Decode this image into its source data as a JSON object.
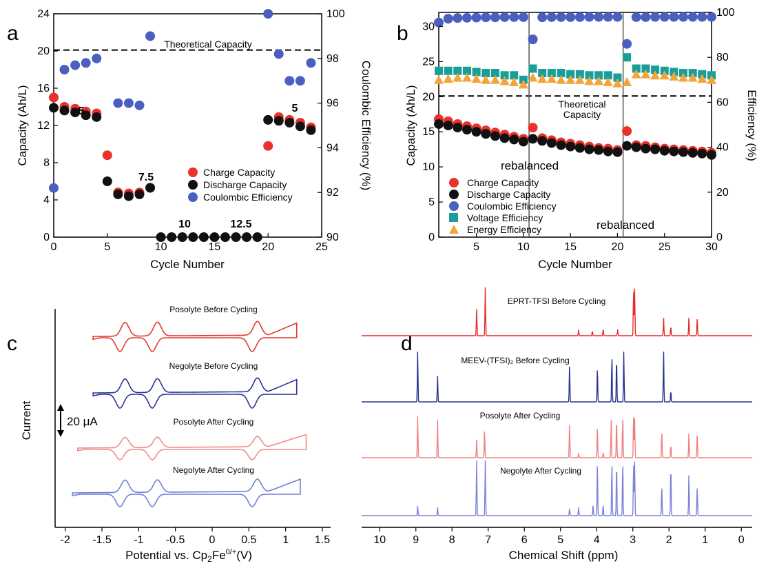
{
  "chart_data": [
    {
      "panel": "a",
      "type": "scatter",
      "xlabel": "Cycle Number",
      "ylabel": "Capacity (Ah/L)",
      "y2label": "Coulombic Efficiency (%)",
      "xlim": [
        0,
        25
      ],
      "ylim": [
        0,
        24
      ],
      "y2lim": [
        90,
        100
      ],
      "xticks": [
        "0",
        "5",
        "10",
        "15",
        "20",
        "25"
      ],
      "yticks": [
        "0",
        "4",
        "8",
        "12",
        "16",
        "20",
        "24"
      ],
      "y2ticks": [
        "90",
        "92",
        "94",
        "96",
        "98",
        "100"
      ],
      "reference_line": {
        "label": "Theoretical Capacity",
        "y": 20.1
      },
      "annotations": [
        "5",
        "7.5",
        "10",
        "12.5",
        "5"
      ],
      "series": [
        {
          "name": "Charge Capacity",
          "color": "#e8322b",
          "axis": "left",
          "x": [
            0,
            1,
            2,
            3,
            4,
            5,
            6,
            7,
            8,
            9,
            21,
            22,
            23,
            24
          ],
          "y": [
            15.0,
            14.0,
            13.8,
            13.5,
            13.3,
            8.8,
            4.8,
            4.7,
            4.8,
            5.3,
            12.9,
            12.6,
            12.3,
            11.8
          ]
        },
        {
          "name": "Discharge Capacity",
          "color": "#111111",
          "axis": "left",
          "x": [
            0,
            1,
            2,
            3,
            4,
            5,
            6,
            7,
            8,
            9,
            10,
            11,
            12,
            13,
            14,
            15,
            16,
            17,
            18,
            19,
            20,
            21,
            22,
            23,
            24
          ],
          "y": [
            13.9,
            13.6,
            13.4,
            13.1,
            12.9,
            6.0,
            4.6,
            4.4,
            4.6,
            5.3,
            0,
            0,
            0,
            0,
            0,
            0,
            0,
            0,
            0,
            0,
            12.6,
            12.5,
            12.3,
            11.9,
            11.5
          ]
        },
        {
          "name": "Charge Capacity",
          "color": "#e8322b",
          "axis": "left",
          "x": [
            20
          ],
          "y": [
            9.8
          ]
        },
        {
          "name": "Coulombic Efficiency",
          "color": "#4a5fbf",
          "axis": "right",
          "x": [
            0,
            1,
            2,
            3,
            4,
            6,
            7,
            8,
            9,
            20,
            21,
            22,
            23,
            24
          ],
          "y": [
            92.2,
            97.5,
            97.7,
            97.8,
            98.0,
            96.0,
            96.0,
            95.9,
            99.0,
            100.0,
            98.2,
            97.0,
            97.0,
            97.8
          ]
        }
      ],
      "legend": [
        "Charge Capacity",
        "Discharge Capacity",
        "Coulombic Efficiency"
      ]
    },
    {
      "panel": "b",
      "type": "scatter",
      "xlabel": "Cycle Number",
      "ylabel": "Capacity (Ah/L)",
      "y2label": "Efficiency (%)",
      "xlim": [
        1,
        30
      ],
      "ylim": [
        0,
        32
      ],
      "y2lim": [
        0,
        100
      ],
      "xticks": [
        "5",
        "10",
        "15",
        "20",
        "25",
        "30"
      ],
      "yticks": [
        "0",
        "5",
        "10",
        "15",
        "20",
        "25",
        "30"
      ],
      "y2ticks": [
        "0",
        "20",
        "40",
        "60",
        "80",
        "100"
      ],
      "reference_line": {
        "label": "Theoretical Capacity",
        "y": 20.1
      },
      "rebalance_cycles": [
        10.6,
        20.6
      ],
      "annotations": [
        "rebalanced",
        "rebalanced"
      ],
      "legend": [
        "Charge Capacity",
        "Discharge Capacity",
        "Coulombic Efficiency",
        "Voltage Efficiency",
        "Energy Efficiency"
      ],
      "series": [
        {
          "name": "Charge Capacity",
          "color": "#e8322b",
          "axis": "left",
          "x": [
            1,
            2,
            3,
            4,
            5,
            6,
            7,
            8,
            9,
            10,
            11,
            12,
            13,
            14,
            15,
            16,
            17,
            18,
            19,
            20,
            21,
            22,
            23,
            24,
            25,
            26,
            27,
            28,
            29,
            30
          ],
          "y": [
            16.8,
            16.5,
            16.1,
            15.8,
            15.5,
            15.2,
            14.9,
            14.6,
            14.3,
            14.0,
            15.6,
            14.1,
            13.8,
            13.5,
            13.3,
            13.1,
            12.9,
            12.7,
            12.6,
            12.4,
            15.1,
            13.1,
            13.0,
            12.8,
            12.6,
            12.5,
            12.4,
            12.3,
            12.2,
            12.0
          ]
        },
        {
          "name": "Discharge Capacity",
          "color": "#111111",
          "axis": "left",
          "x": [
            1,
            2,
            3,
            4,
            5,
            6,
            7,
            8,
            9,
            10,
            11,
            12,
            13,
            14,
            15,
            16,
            17,
            18,
            19,
            20,
            21,
            22,
            23,
            24,
            25,
            26,
            27,
            28,
            29,
            30
          ],
          "y": [
            16.1,
            15.9,
            15.6,
            15.3,
            15.0,
            14.7,
            14.4,
            14.1,
            13.9,
            13.6,
            14.0,
            13.7,
            13.4,
            13.1,
            12.9,
            12.7,
            12.5,
            12.4,
            12.2,
            12.1,
            13.0,
            12.8,
            12.6,
            12.5,
            12.3,
            12.2,
            12.1,
            12.0,
            11.9,
            11.7
          ]
        },
        {
          "name": "Coulombic Efficiency",
          "color": "#4a5fbf",
          "axis": "right",
          "x": [
            1,
            2,
            3,
            4,
            5,
            6,
            7,
            8,
            9,
            10,
            11,
            12,
            13,
            14,
            15,
            16,
            17,
            18,
            19,
            20,
            21,
            22,
            23,
            24,
            25,
            26,
            27,
            28,
            29,
            30
          ],
          "y": [
            95.5,
            97.2,
            97.5,
            97.6,
            97.7,
            97.8,
            97.8,
            97.9,
            97.9,
            97.9,
            88.0,
            97.8,
            97.9,
            97.9,
            97.9,
            97.9,
            98.0,
            98.0,
            98.0,
            98.0,
            86.0,
            97.9,
            97.9,
            98.0,
            98.0,
            98.0,
            98.0,
            98.0,
            98.0,
            98.0
          ]
        },
        {
          "name": "Voltage Efficiency",
          "color": "#1a9e9a",
          "axis": "right",
          "x": [
            1,
            2,
            3,
            4,
            5,
            6,
            7,
            8,
            9,
            10,
            11,
            12,
            13,
            14,
            15,
            16,
            17,
            18,
            19,
            20,
            21,
            22,
            23,
            24,
            25,
            26,
            27,
            28,
            29,
            30
          ],
          "y": [
            74,
            74,
            74,
            74,
            73.5,
            73,
            73,
            72,
            72,
            70,
            75,
            73,
            73,
            73,
            72.5,
            72.5,
            72,
            72,
            72,
            71,
            80,
            75,
            75,
            74.5,
            74,
            73.5,
            73,
            73,
            72.5,
            72
          ]
        },
        {
          "name": "Energy Efficiency",
          "color": "#f3a53a",
          "axis": "right",
          "x": [
            1,
            2,
            3,
            4,
            5,
            6,
            7,
            8,
            9,
            10,
            11,
            12,
            13,
            14,
            15,
            16,
            17,
            18,
            19,
            20,
            21,
            22,
            23,
            24,
            25,
            26,
            27,
            28,
            29,
            30
          ],
          "y": [
            70,
            70.5,
            71,
            71,
            70.5,
            70,
            70,
            69.5,
            69,
            68,
            71,
            70.5,
            70.5,
            70,
            70,
            70,
            69.5,
            69.5,
            69,
            68.5,
            69,
            72.5,
            72.5,
            72,
            72,
            71.5,
            71,
            71,
            70.5,
            70
          ]
        }
      ]
    },
    {
      "panel": "c",
      "type": "line",
      "xlabel": "Potential vs. Cp₂Fe⁰/⁺(V)",
      "ylabel": "Current",
      "xlim": [
        -2.1,
        1.5
      ],
      "xticks": [
        "-2",
        "-1.5",
        "-1",
        "-0.5",
        "0",
        "0.5",
        "1",
        "1.5"
      ],
      "scale_bar": "20 μA",
      "series": [
        {
          "name": "Posolyte Before Cycling",
          "color": "#e23a2a"
        },
        {
          "name": "Negolyte Before Cycling",
          "color": "#2a3394"
        },
        {
          "name": "Posolyte After Cycling",
          "color": "#f08a88"
        },
        {
          "name": "Negolyte After Cycling",
          "color": "#6f7fd6"
        }
      ]
    },
    {
      "panel": "d",
      "type": "line",
      "xlabel": "Chemical Shift (ppm)",
      "xlim": [
        10.5,
        -0.3
      ],
      "xticks": [
        "10",
        "9",
        "8",
        "7",
        "6",
        "5",
        "4",
        "3",
        "2",
        "1",
        "0"
      ],
      "series": [
        {
          "name": "EPRT-TFSI Before Cycling",
          "color": "#e52b2b",
          "peaks": [
            [
              7.32,
              0.55
            ],
            [
              7.08,
              1.0
            ],
            [
              4.5,
              0.12
            ],
            [
              4.12,
              0.1
            ],
            [
              3.82,
              0.14
            ],
            [
              3.42,
              0.13
            ],
            [
              2.98,
              1.0
            ],
            [
              2.95,
              1.0
            ],
            [
              2.15,
              0.38
            ],
            [
              1.95,
              0.2
            ],
            [
              1.45,
              0.38
            ],
            [
              1.22,
              0.38
            ]
          ]
        },
        {
          "name": "MEEV-(TFSI)₂ Before Cycling",
          "color": "#28348f",
          "peaks": [
            [
              8.95,
              1.0
            ],
            [
              8.4,
              0.5
            ],
            [
              4.75,
              0.72
            ],
            [
              3.98,
              0.68
            ],
            [
              3.58,
              0.92
            ],
            [
              3.45,
              0.9
            ],
            [
              3.25,
              1.0
            ],
            [
              2.15,
              1.0
            ],
            [
              1.95,
              0.22
            ]
          ]
        },
        {
          "name": "Posolyte After Cycling",
          "color": "#f08080",
          "peaks": [
            [
              8.95,
              0.95
            ],
            [
              8.4,
              0.85
            ],
            [
              7.32,
              0.4
            ],
            [
              7.1,
              0.65
            ],
            [
              4.75,
              0.75
            ],
            [
              4.5,
              0.1
            ],
            [
              3.98,
              0.72
            ],
            [
              3.82,
              0.12
            ],
            [
              3.6,
              0.85
            ],
            [
              3.45,
              0.92
            ],
            [
              3.28,
              0.95
            ],
            [
              2.98,
              1.0
            ],
            [
              2.95,
              0.9
            ],
            [
              2.2,
              0.6
            ],
            [
              1.95,
              0.3
            ],
            [
              1.45,
              0.55
            ],
            [
              1.22,
              0.55
            ]
          ]
        },
        {
          "name": "Negolyte After Cycling",
          "color": "#7b82d8",
          "peaks": [
            [
              8.95,
              0.18
            ],
            [
              8.4,
              0.15
            ],
            [
              7.32,
              1.0
            ],
            [
              7.08,
              1.0
            ],
            [
              4.75,
              0.13
            ],
            [
              4.5,
              0.15
            ],
            [
              4.1,
              0.2
            ],
            [
              3.98,
              1.0
            ],
            [
              3.82,
              0.2
            ],
            [
              3.58,
              1.0
            ],
            [
              3.45,
              1.0
            ],
            [
              3.28,
              1.0
            ],
            [
              2.98,
              1.0
            ],
            [
              2.95,
              1.0
            ],
            [
              2.2,
              0.55
            ],
            [
              1.95,
              0.95
            ],
            [
              1.45,
              0.75
            ],
            [
              1.22,
              0.55
            ]
          ]
        }
      ]
    }
  ],
  "panels": {
    "a": {
      "letter": "a"
    },
    "b": {
      "letter": "b"
    },
    "c": {
      "letter": "c"
    },
    "d": {
      "letter": "d"
    }
  }
}
